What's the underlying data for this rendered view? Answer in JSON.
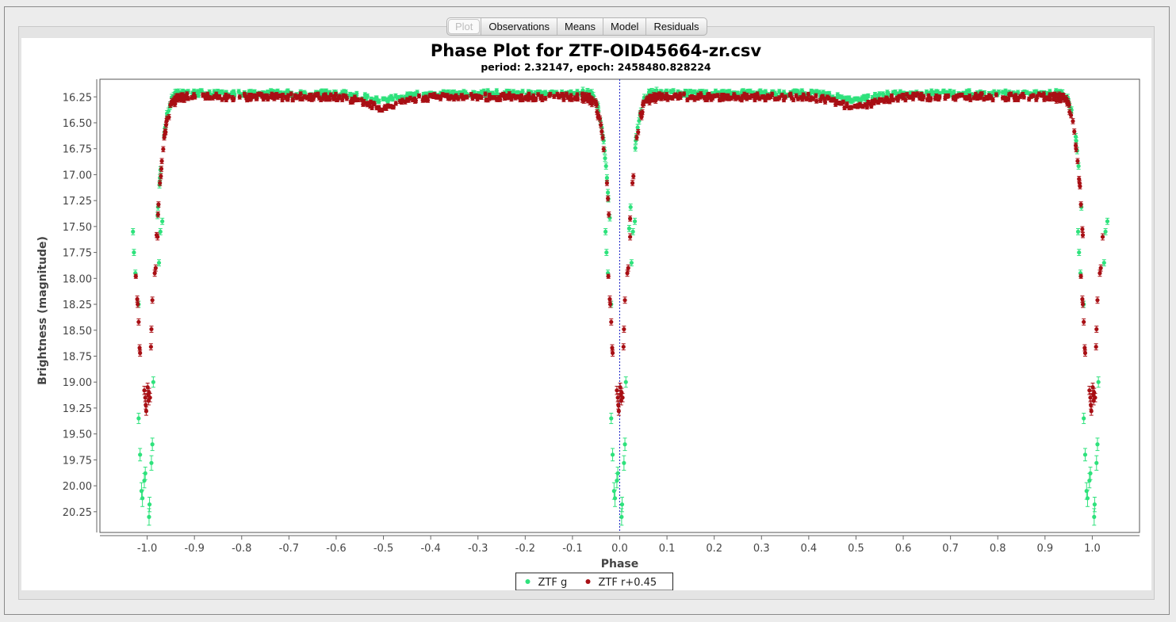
{
  "tabs": [
    {
      "label": "Plot",
      "active": true
    },
    {
      "label": "Observations",
      "active": false
    },
    {
      "label": "Means",
      "active": false
    },
    {
      "label": "Model",
      "active": false
    },
    {
      "label": "Residuals",
      "active": false
    }
  ],
  "colors": {
    "g_series": "#2ee27c",
    "r_series": "#a80f14",
    "epoch_line": "#1d24c8",
    "plot_border": "#555555"
  },
  "chart_data": {
    "type": "scatter",
    "title": "Phase Plot for ZTF-OID45664-zr.csv",
    "subtitle": "period: 2.32147, epoch: 2458480.828224",
    "xlabel": "Phase",
    "ylabel": "Brightness (magnitude)",
    "xlim": [
      -1.1,
      1.1
    ],
    "ylim": [
      20.45,
      16.08
    ],
    "y_inverted": true,
    "grid": false,
    "legend_position": "bottom-center",
    "x_ticks": [
      -1.0,
      -0.9,
      -0.8,
      -0.7,
      -0.6,
      -0.5,
      -0.4,
      -0.3,
      -0.2,
      -0.1,
      0.0,
      0.1,
      0.2,
      0.3,
      0.4,
      0.5,
      0.6,
      0.7,
      0.8,
      0.9,
      1.0
    ],
    "x_tick_labels": [
      "-1.0",
      "-0.9",
      "-0.8",
      "-0.7",
      "-0.6",
      "-0.5",
      "-0.4",
      "-0.3",
      "-0.2",
      "-0.1",
      "0.0",
      "0.1",
      "0.2",
      "0.3",
      "0.4",
      "0.5",
      "0.6",
      "0.7",
      "0.8",
      "0.9",
      "1.0"
    ],
    "y_ticks": [
      16.25,
      16.5,
      16.75,
      17.0,
      17.25,
      17.5,
      17.75,
      18.0,
      18.25,
      18.5,
      18.75,
      19.0,
      19.25,
      19.5,
      19.75,
      20.0,
      20.25
    ],
    "y_tick_labels": [
      "16.25",
      "16.50",
      "16.75",
      "17.00",
      "17.25",
      "17.50",
      "17.75",
      "18.00",
      "18.25",
      "18.50",
      "18.75",
      "19.00",
      "19.25",
      "19.50",
      "19.75",
      "20.00",
      "20.25"
    ],
    "epoch_marker_x": 0.0,
    "series": [
      {
        "name": "ZTF g",
        "color": "#2ee27c",
        "error_bar": 0.03,
        "eclipse_points": [
          {
            "x": -0.018,
            "y": 19.35,
            "err": 0.05
          },
          {
            "x": -0.015,
            "y": 19.7,
            "err": 0.06
          },
          {
            "x": -0.012,
            "y": 20.05,
            "err": 0.08
          },
          {
            "x": -0.01,
            "y": 20.12,
            "err": 0.08
          },
          {
            "x": -0.006,
            "y": 19.95,
            "err": 0.07
          },
          {
            "x": -0.004,
            "y": 19.88,
            "err": 0.06
          },
          {
            "x": 0.004,
            "y": 20.3,
            "err": 0.08
          },
          {
            "x": 0.005,
            "y": 20.18,
            "err": 0.07
          },
          {
            "x": 0.009,
            "y": 19.78,
            "err": 0.07
          },
          {
            "x": 0.011,
            "y": 19.6,
            "err": 0.06
          },
          {
            "x": 0.013,
            "y": 19.0,
            "err": 0.05
          },
          {
            "x": -0.025,
            "y": 17.95,
            "err": 0.03
          },
          {
            "x": -0.028,
            "y": 17.75,
            "err": 0.03
          },
          {
            "x": -0.03,
            "y": 17.55,
            "err": 0.03
          },
          {
            "x": 0.025,
            "y": 17.85,
            "err": 0.03
          },
          {
            "x": 0.028,
            "y": 17.55,
            "err": 0.03
          },
          {
            "x": 0.032,
            "y": 17.45,
            "err": 0.03
          },
          {
            "x": -0.018,
            "y": 18.25,
            "err": 0.03
          }
        ]
      },
      {
        "name": "ZTF r+0.45",
        "color": "#a80f14",
        "error_bar": 0.03,
        "eclipse_points": [
          {
            "x": -0.024,
            "y": 17.98,
            "err": 0.02
          },
          {
            "x": -0.021,
            "y": 18.2,
            "err": 0.03
          },
          {
            "x": -0.02,
            "y": 18.25,
            "err": 0.03
          },
          {
            "x": -0.018,
            "y": 18.42,
            "err": 0.03
          },
          {
            "x": -0.016,
            "y": 18.67,
            "err": 0.03
          },
          {
            "x": -0.015,
            "y": 18.72,
            "err": 0.03
          },
          {
            "x": -0.006,
            "y": 19.08,
            "err": 0.04
          },
          {
            "x": -0.004,
            "y": 19.15,
            "err": 0.04
          },
          {
            "x": -0.003,
            "y": 19.22,
            "err": 0.04
          },
          {
            "x": -0.002,
            "y": 19.28,
            "err": 0.04
          },
          {
            "x": 0.001,
            "y": 19.05,
            "err": 0.04
          },
          {
            "x": 0.002,
            "y": 19.12,
            "err": 0.04
          },
          {
            "x": 0.003,
            "y": 19.18,
            "err": 0.04
          },
          {
            "x": 0.004,
            "y": 19.1,
            "err": 0.04
          },
          {
            "x": 0.006,
            "y": 19.15,
            "err": 0.04
          },
          {
            "x": 0.008,
            "y": 18.66,
            "err": 0.03
          },
          {
            "x": 0.009,
            "y": 18.49,
            "err": 0.03
          },
          {
            "x": 0.011,
            "y": 18.21,
            "err": 0.03
          },
          {
            "x": 0.016,
            "y": 17.95,
            "err": 0.03
          },
          {
            "x": 0.018,
            "y": 17.9,
            "err": 0.03
          },
          {
            "x": 0.022,
            "y": 17.6,
            "err": 0.03
          }
        ]
      }
    ]
  }
}
